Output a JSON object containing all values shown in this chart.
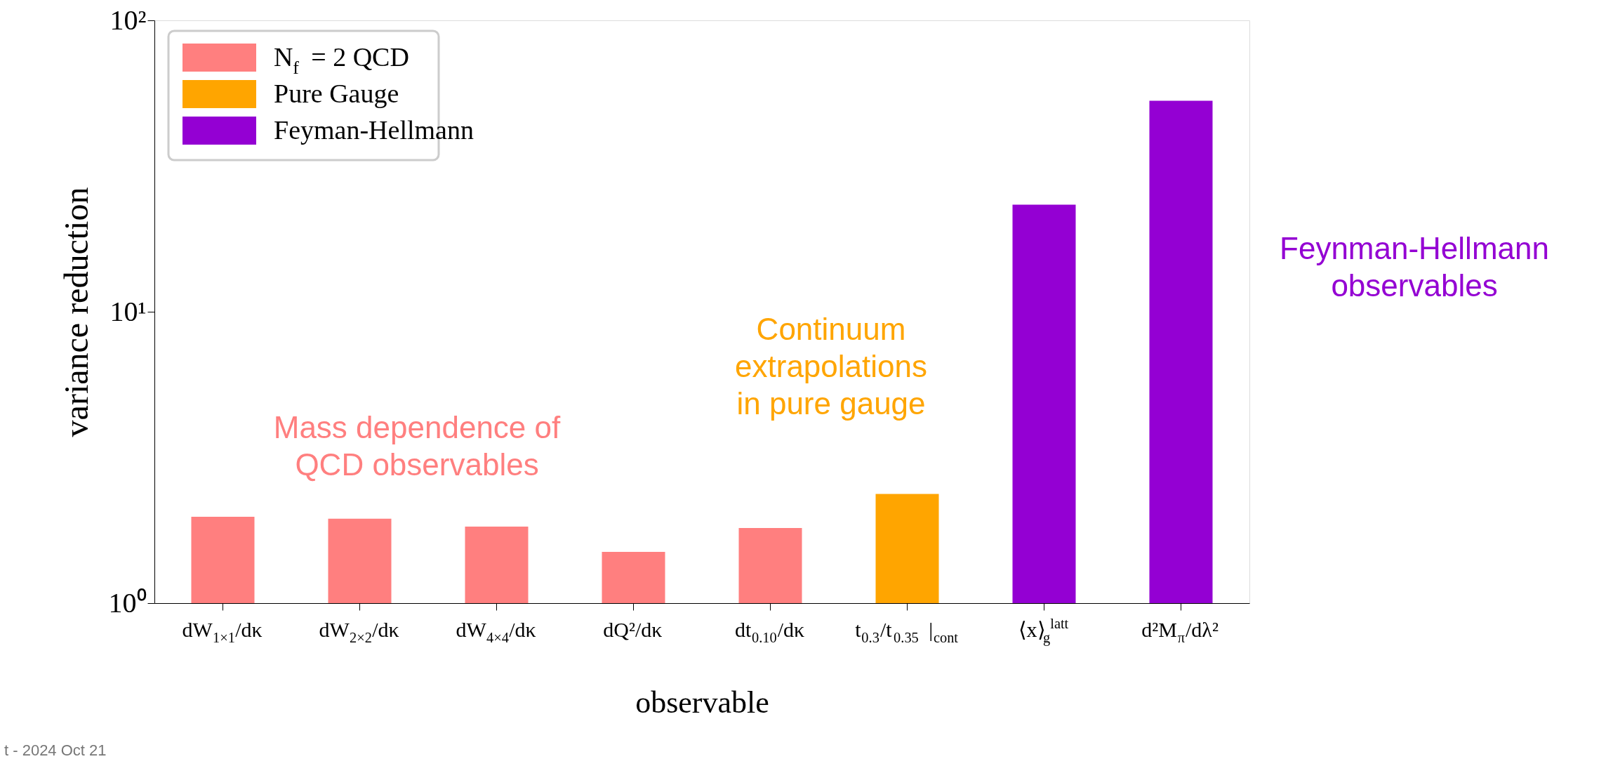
{
  "chart_data": {
    "type": "bar",
    "xlabel": "observable",
    "ylabel": "variance reduction",
    "categories": [
      "dW$_{1×1}$/dκ",
      "dW$_{2×2}$/dκ",
      "dW$_{4×4}$/dκ",
      "dQ²/dκ",
      "dt$_{0.10}$/dκ",
      "t$_{0.3}$/t$_{0.35}$ |$_{cont}$",
      "⟨x⟩$_{g}$$^{latt}$",
      "d²M$_{π}$/dλ²"
    ],
    "series": [
      {
        "name": "N$_{f}$ = 2 QCD",
        "color": "#ff7f7f",
        "values": [
          1.98,
          1.95,
          1.83,
          1.5,
          1.81,
          null,
          null,
          null
        ]
      },
      {
        "name": "Pure Gauge",
        "color": "#ffa500",
        "values": [
          null,
          null,
          null,
          null,
          null,
          2.37,
          null,
          null
        ]
      },
      {
        "name": "Feyman-Hellmann",
        "color": "#9400d3",
        "values": [
          null,
          null,
          null,
          null,
          null,
          null,
          23.3,
          53
        ]
      }
    ],
    "log": true,
    "ylim": [
      1,
      100
    ],
    "yticks": [
      {
        "value": 1,
        "label": "10⁰"
      },
      {
        "value": 10,
        "label": "10¹"
      },
      {
        "value": 100,
        "label": "10²"
      }
    ],
    "legend": "top left",
    "annotations": [
      "Mass dependence of\nQCD observables",
      "Continuum\nextrapolations\nin pure gauge",
      "Feynman-Hellmann\nobservables",
      "t - 2024 Oct 21"
    ]
  }
}
